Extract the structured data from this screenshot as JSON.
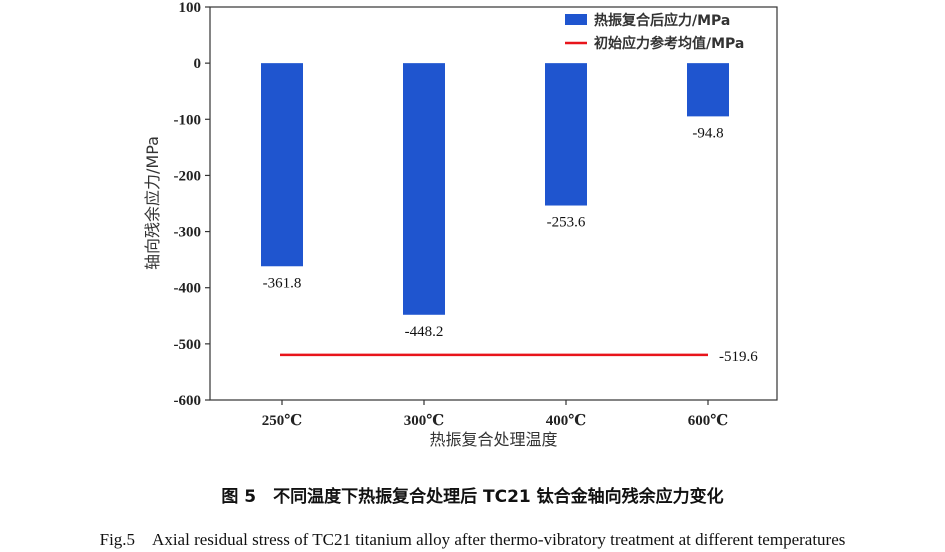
{
  "chart_data": {
    "type": "bar",
    "categories": [
      "250℃",
      "300℃",
      "400℃",
      "600℃"
    ],
    "series": [
      {
        "name": "热振复合后应力/MPa",
        "values": [
          -361.8,
          -448.2,
          -253.6,
          -94.8
        ],
        "data_labels": [
          "-361.8",
          "-448.2",
          "-253.6",
          "-94.8"
        ]
      }
    ],
    "reference_line": {
      "name": "初始应力参考均值/MPa",
      "value": -519.6,
      "label": "-519.6"
    },
    "xlabel": "热振复合处理温度",
    "ylabel": "轴向残余应力/MPa",
    "ylim": [
      -600,
      100
    ],
    "yticks": [
      100,
      0,
      -100,
      -200,
      -300,
      -400,
      -500,
      -600
    ],
    "grid": false,
    "legend_position": "top-right",
    "colors": {
      "bar": "#1f55cf",
      "reference": "#e8141b"
    }
  },
  "caption": {
    "cn": "图 5　不同温度下热振复合处理后 TC21 钛合金轴向残余应力变化",
    "en": "Fig.5　Axial residual stress of TC21 titanium alloy after thermo-vibratory treatment at different temperatures"
  }
}
